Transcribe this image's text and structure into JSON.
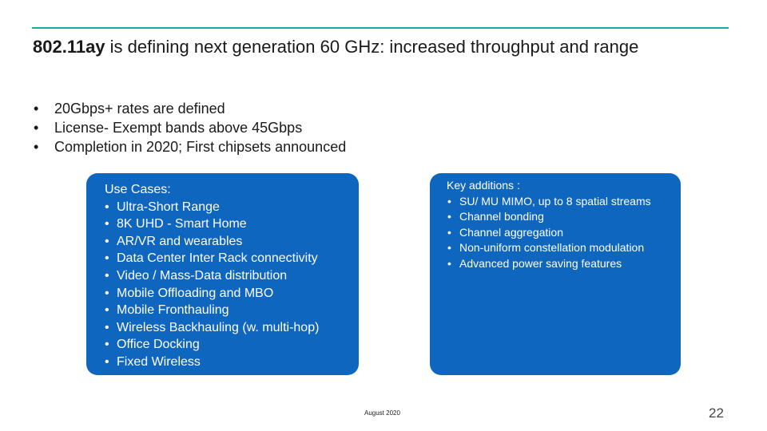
{
  "title": {
    "bold": "802.11ay",
    "rest": " is defining next generation 60 GHz: increased throughput and range"
  },
  "bullets": [
    "20Gbps+ rates are defined",
    "License- Exempt bands above 45Gbps",
    "Completion in 2020; First chipsets announced"
  ],
  "use_cases": {
    "header": "Use Cases:",
    "items": [
      "Ultra-Short Range",
      "8K UHD - Smart Home",
      "AR/VR and wearables",
      "Data Center Inter Rack connectivity",
      "Video / Mass-Data distribution",
      "Mobile Offloading and MBO",
      "Mobile Fronthauling",
      "Wireless Backhauling (w. multi-hop)",
      "Office Docking",
      "Fixed Wireless"
    ]
  },
  "key_additions": {
    "header": "Key additions :",
    "items": [
      "SU/ MU MIMO, up to 8 spatial streams",
      "Channel bonding",
      "Channel aggregation",
      "Non-uniform constellation modulation",
      "Advanced power saving features"
    ]
  },
  "footer": {
    "date": "August 2020",
    "page_number": "22"
  },
  "colors": {
    "accent_rule": "#1aa99a",
    "box_fill": "#0f66bf"
  }
}
